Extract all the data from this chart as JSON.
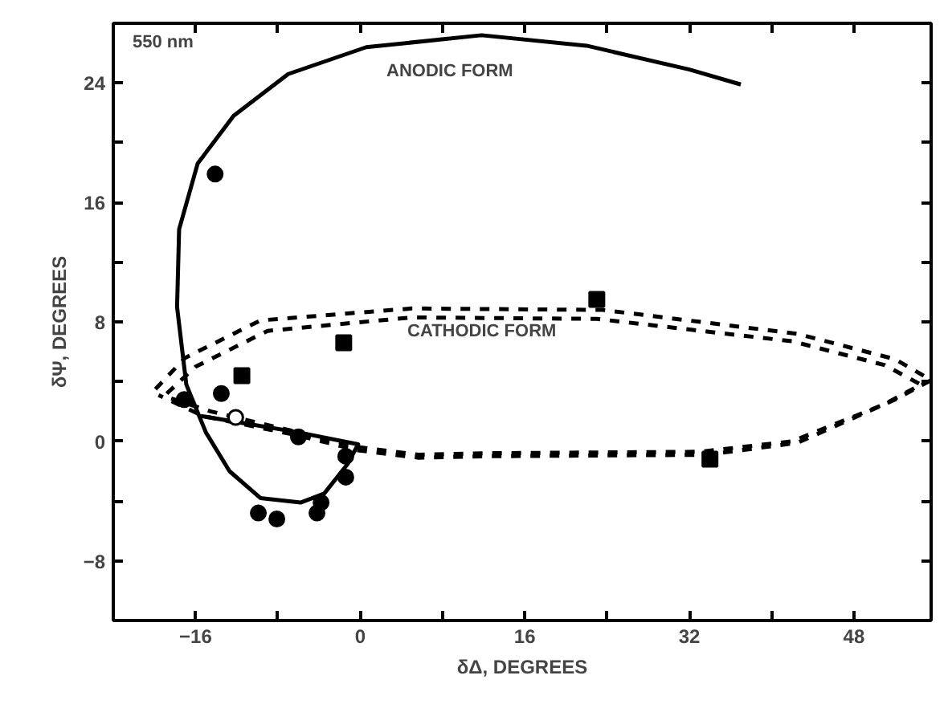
{
  "chart_data": {
    "type": "scatter",
    "xlabel": "δΔ, DEGREES",
    "ylabel": "δΨ, DEGREES",
    "xlim": [
      -24,
      55.5
    ],
    "ylim": [
      -12,
      28
    ],
    "xticks": [
      {
        "value": -16,
        "label": "−16"
      },
      {
        "value": -8,
        "label": null
      },
      0,
      {
        "value": 8,
        "label": null
      },
      16,
      {
        "value": 24,
        "label": null
      },
      32,
      {
        "value": 40,
        "label": null
      },
      48
    ],
    "yticks": [
      {
        "value": -8,
        "label": "−8"
      },
      {
        "value": -4,
        "label": null
      },
      0,
      {
        "value": 4,
        "label": null
      },
      8,
      {
        "value": 12,
        "label": null
      },
      16,
      {
        "value": 20,
        "label": null
      },
      24
    ],
    "grid": false,
    "annotations": [
      "550 nm",
      "ANODIC FORM",
      "CATHODIC FORM"
    ],
    "series": [
      {
        "type": "line",
        "line_style": "solid",
        "color": "#000000",
        "x": [
          37,
          32,
          22,
          11.8,
          0.6,
          -7,
          -12.3,
          -15.8,
          -17.6,
          -17.8,
          -16.9,
          -15,
          -12.7,
          -9.7,
          -5.8,
          -3.5,
          -1.2,
          -0.2,
          -6,
          -15.5
        ],
        "values": [
          23.9,
          24.9,
          26.5,
          27.2,
          26.4,
          24.6,
          21.8,
          18.6,
          14.2,
          9,
          3.8,
          0.6,
          -2,
          -3.8,
          -4.1,
          -3.5,
          -1.5,
          -0.2,
          0.6,
          1.7
        ]
      },
      {
        "type": "line",
        "line_style": "dashed",
        "color": "#000000",
        "x": [
          -19.9,
          -17,
          -9.7,
          5,
          23.6,
          42.5,
          52,
          55.5,
          52,
          42.5,
          33.7,
          11.8,
          5.7,
          -0.2,
          -6.1,
          -15.3,
          -19.6
        ],
        "values": [
          3.5,
          5.6,
          8.1,
          8.9,
          8.8,
          7.2,
          5.5,
          4.1,
          2.8,
          -0.1,
          -0.9,
          -1,
          -1.1,
          -0.6,
          0.4,
          1.7,
          3.1
        ]
      },
      {
        "type": "line",
        "line_style": "dashed",
        "color": "#000000",
        "x": [
          -18.8,
          -16,
          -9,
          5,
          23,
          42,
          51,
          54.5,
          51,
          42,
          33,
          11.8,
          5.7,
          0,
          -6,
          -14.5,
          -18.5
        ],
        "values": [
          3.2,
          5.0,
          7.4,
          8.3,
          8.2,
          6.7,
          5.1,
          3.8,
          2.5,
          0,
          -0.7,
          -0.8,
          -0.9,
          -0.4,
          0.6,
          2.0,
          2.9
        ]
      },
      {
        "marker": "circle",
        "color": "#000000",
        "x": [
          -14.1,
          -17.1,
          -13.5,
          -6,
          -1.4,
          -1.4,
          -3.8,
          -4.2,
          -9.9,
          -8.1
        ],
        "values": [
          17.9,
          2.8,
          3.2,
          0.3,
          -1.0,
          -2.4,
          -4.1,
          -4.8,
          -4.8,
          -5.2
        ]
      },
      {
        "marker": "square",
        "color": "#000000",
        "x": [
          -11.5,
          -1.6,
          23,
          34
        ],
        "values": [
          4.4,
          6.6,
          9.5,
          -1.2
        ]
      },
      {
        "marker": "circle",
        "color": "#ffffff",
        "x": [
          -12.1
        ],
        "values": [
          1.6
        ]
      }
    ]
  }
}
